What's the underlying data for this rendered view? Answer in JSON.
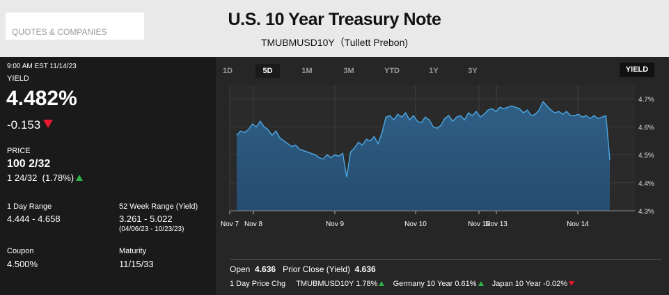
{
  "header": {
    "search_placeholder": "QUOTES & COMPANIES",
    "title": "U.S. 10 Year Treasury Note",
    "subtitle": "TMUBMUSD10Y（Tullett Prebon)"
  },
  "quote": {
    "timestamp": "9:00 AM EST 11/14/23",
    "yield_label": "YIELD",
    "yield_value": "4.482%",
    "yield_change": "-0.153",
    "price_label": "PRICE",
    "price_value": "100 2/32",
    "price_change": "1 24/32",
    "price_change_pct": "(1.78%)",
    "day_range_label": "1 Day Range",
    "day_range": "4.444 - 4.658",
    "week52_label": "52 Week Range (Yield)",
    "week52_range": "3.261 - 5.022",
    "week52_dates": "(04/06/23 - 10/23/23)",
    "coupon_label": "Coupon",
    "coupon": "4.500%",
    "maturity_label": "Maturity",
    "maturity": "11/15/33",
    "up_color": "#2db24a",
    "down_color": "#e8192c"
  },
  "tabs": [
    "1D",
    "5D",
    "1M",
    "3M",
    "YTD",
    "1Y",
    "3Y"
  ],
  "active_tab": "5D",
  "yield_toggle": "YIELD",
  "stats": {
    "open_label": "Open",
    "open": "4.636",
    "prior_close_label": "Prior Close (Yield)",
    "prior_close": "4.636",
    "day_price_chg_label": "1 Day Price Chg",
    "items": [
      {
        "name": "TMUBMUSD10Y",
        "value": "1.78%",
        "dir": "up"
      },
      {
        "name": "Germany 10 Year",
        "value": "0.61%",
        "dir": "up"
      },
      {
        "name": "Japan 10 Year",
        "value": "-0.02%",
        "dir": "down"
      }
    ]
  },
  "chart_data": {
    "type": "area",
    "ylabel": "",
    "ylim": [
      4.3,
      4.75
    ],
    "y_ticks": [
      "4.3%",
      "4.4%",
      "4.5%",
      "4.6%",
      "4.7%"
    ],
    "x_ticks": [
      "Nov 7",
      "Nov 8",
      "Nov 9",
      "Nov 10",
      "Nov 12",
      "Nov 13",
      "Nov 14"
    ],
    "grid": true,
    "fill_color": "#2f5f86",
    "line_color": "#4aa3df",
    "x": [
      0,
      1,
      2,
      3,
      4,
      5,
      6,
      7,
      8,
      9,
      10,
      11,
      12,
      13,
      14,
      15,
      16,
      17,
      18,
      19,
      20,
      21,
      22,
      23,
      24,
      25,
      26,
      27,
      28,
      29,
      30,
      31,
      32,
      33,
      34,
      35,
      36,
      37,
      38,
      39,
      40,
      41,
      42,
      43,
      44,
      45,
      46,
      47,
      48,
      49,
      50,
      51,
      52,
      53,
      54,
      55,
      56,
      57,
      58,
      59,
      60,
      61,
      62,
      63,
      64,
      65,
      66,
      67,
      68,
      69,
      70,
      71,
      72,
      73,
      74,
      75,
      76,
      77,
      78,
      79,
      80,
      81,
      82,
      83,
      84,
      85,
      86,
      87,
      88,
      89,
      90,
      91,
      92,
      93,
      94,
      95
    ],
    "values": [
      4.57,
      4.585,
      4.58,
      4.59,
      4.61,
      4.6,
      4.62,
      4.6,
      4.59,
      4.57,
      4.585,
      4.56,
      4.55,
      4.54,
      4.53,
      4.535,
      4.52,
      4.515,
      4.51,
      4.505,
      4.5,
      4.49,
      4.485,
      4.5,
      4.49,
      4.5,
      4.495,
      4.505,
      4.42,
      4.51,
      4.525,
      4.545,
      4.535,
      4.555,
      4.55,
      4.565,
      4.54,
      4.58,
      4.635,
      4.64,
      4.625,
      4.645,
      4.635,
      4.65,
      4.625,
      4.64,
      4.62,
      4.615,
      4.635,
      4.625,
      4.6,
      4.595,
      4.605,
      4.63,
      4.64,
      4.62,
      4.635,
      4.64,
      4.625,
      4.65,
      4.64,
      4.655,
      4.635,
      4.645,
      4.66,
      4.665,
      4.655,
      4.67,
      4.665,
      4.67,
      4.675,
      4.67,
      4.665,
      4.65,
      4.66,
      4.64,
      4.645,
      4.66,
      4.69,
      4.675,
      4.66,
      4.65,
      4.655,
      4.645,
      4.655,
      4.64,
      4.64,
      4.645,
      4.635,
      4.64,
      4.63,
      4.64,
      4.63,
      4.635,
      4.64,
      4.482
    ]
  }
}
